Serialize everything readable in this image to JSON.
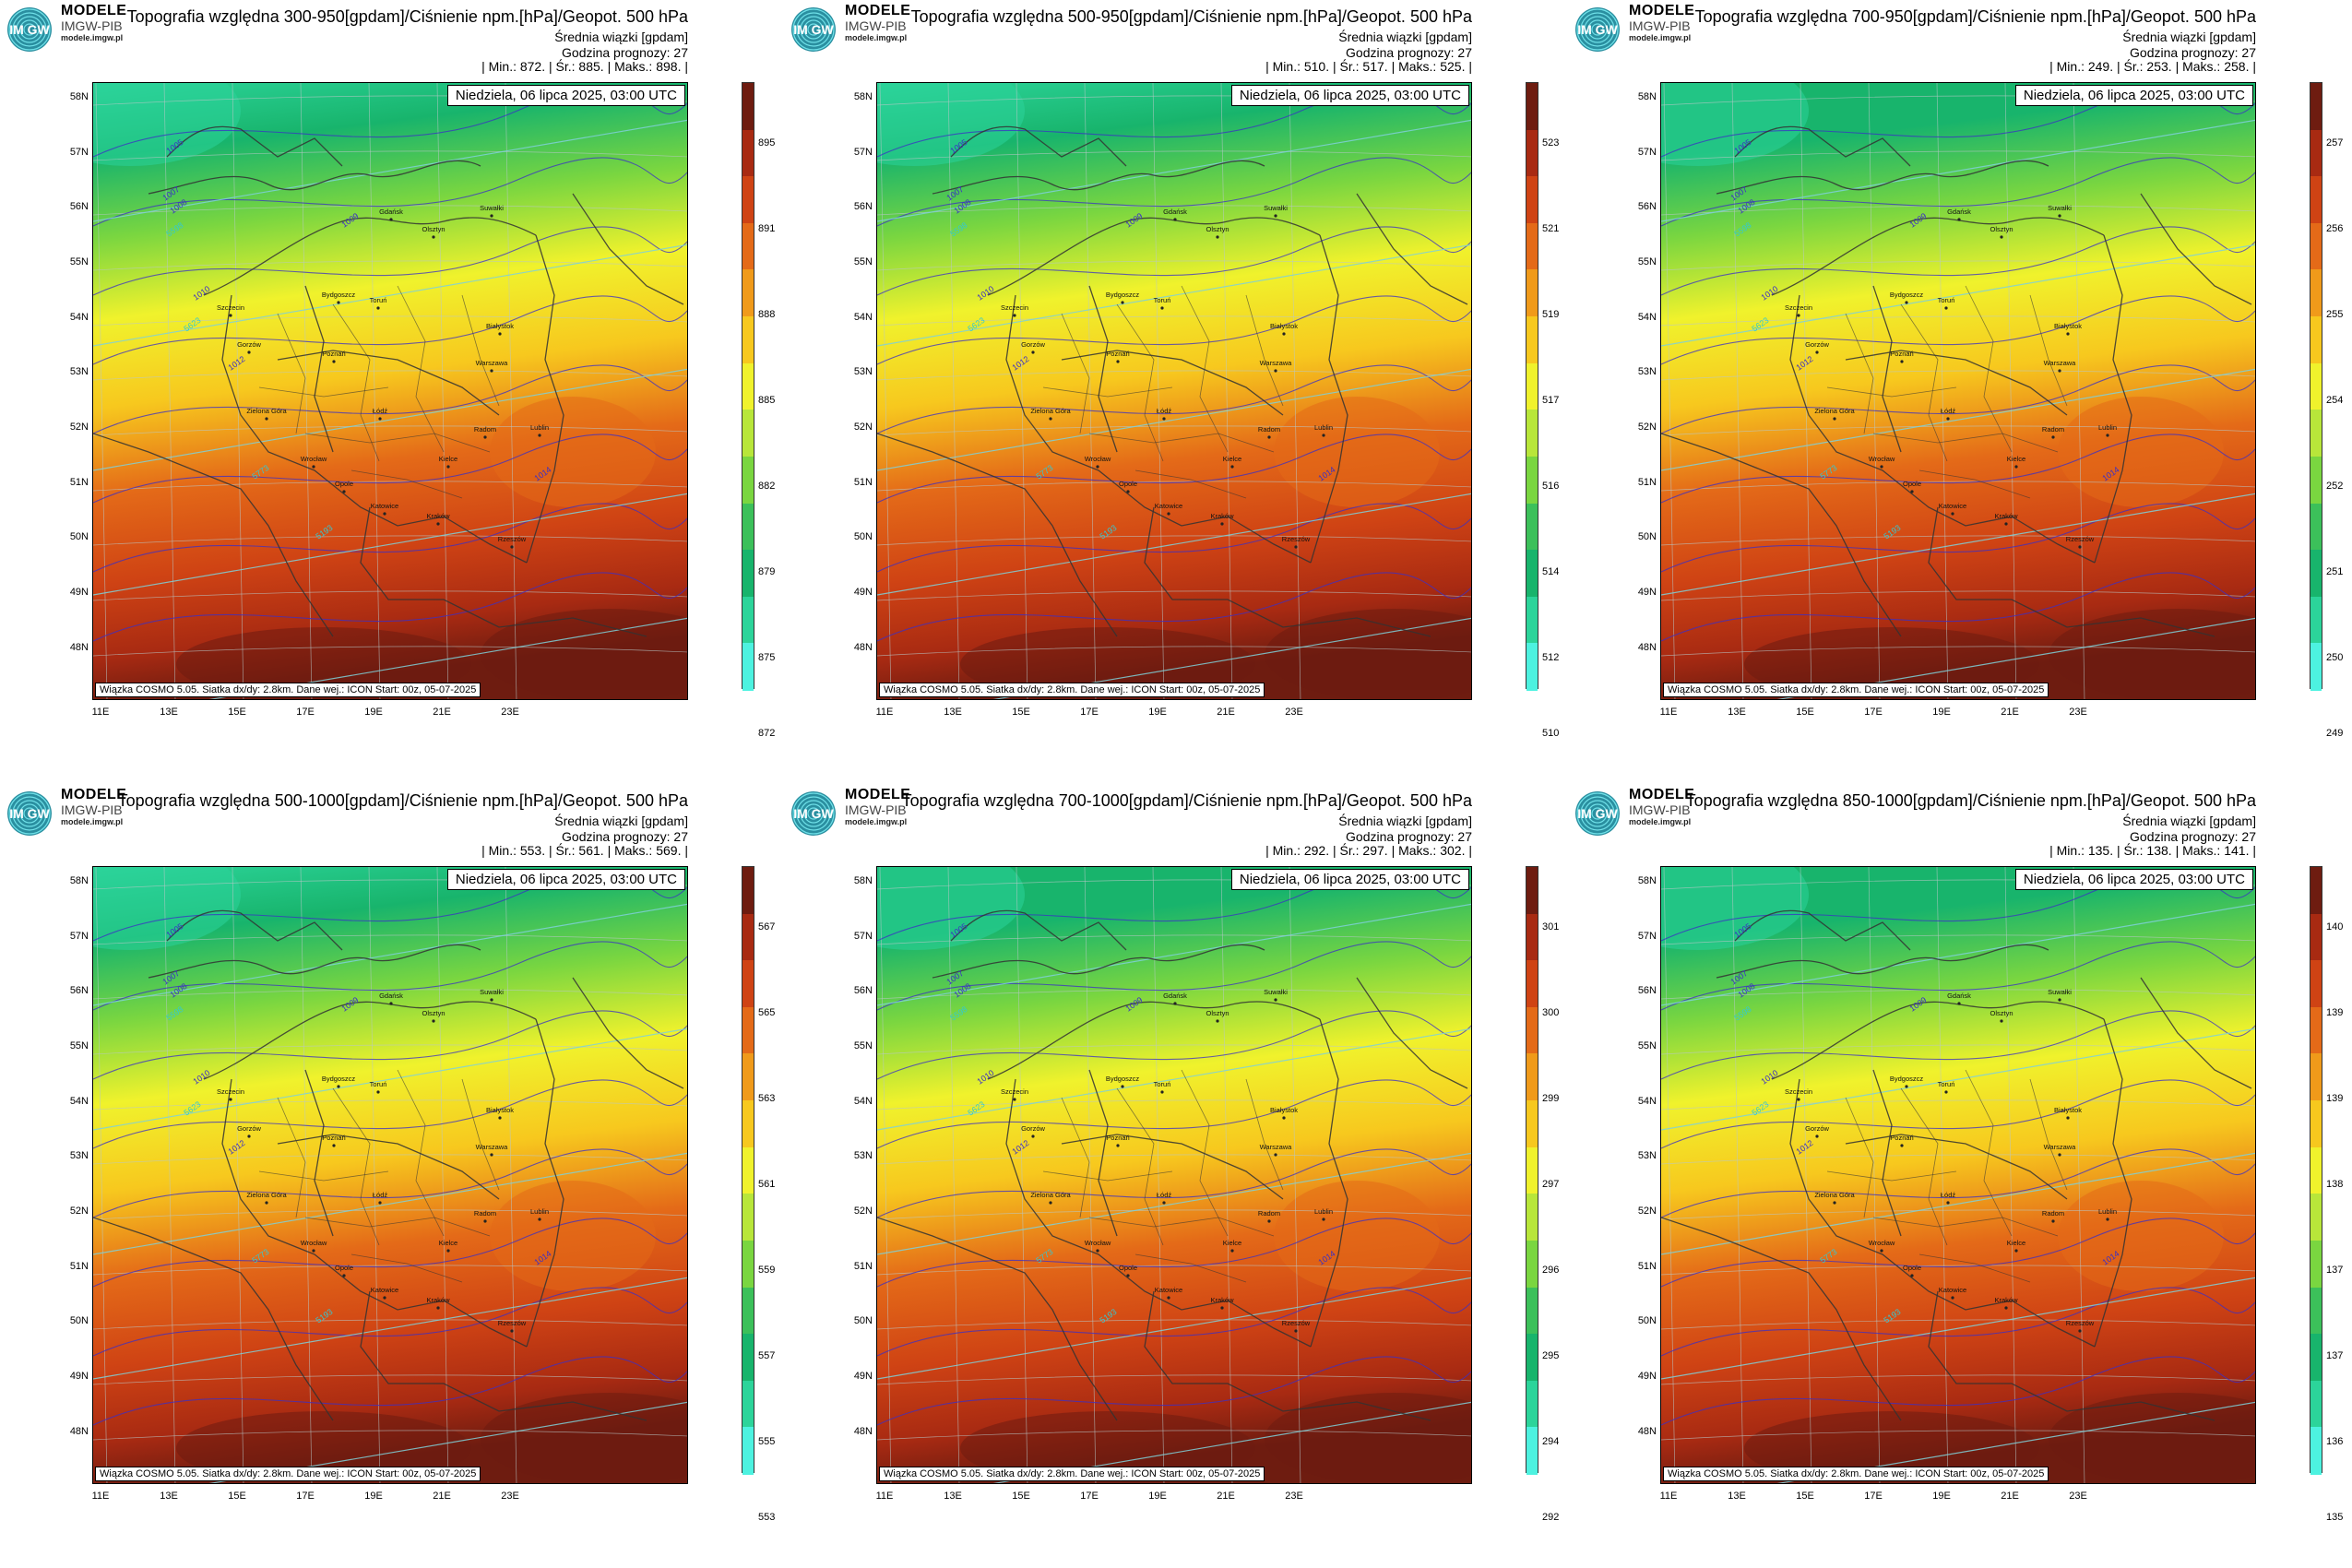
{
  "brand": {
    "logo": "IM GW",
    "name": "MODELE",
    "sub": "IMGW-PIB",
    "url": "modele.imgw.pl"
  },
  "subtitle1": "Średnia wiązki [gpdam]",
  "subtitle2": "Godzina prognozy: 27",
  "stat_labels": {
    "min": "Min.:",
    "mean": "Śr.:",
    "max": "Maks.:"
  },
  "date": "Niedziela, 06 lipca 2025, 03:00 UTC",
  "footer": "Wiązka COSMO 5.05. Siatka dx/dy: 2.8km. Dane wej.: ICON Start: 00z, 05-07-2025",
  "lat_labels": [
    "58N",
    "57N",
    "56N",
    "55N",
    "54N",
    "53N",
    "52N",
    "51N",
    "50N",
    "49N",
    "48N"
  ],
  "lon_labels": [
    "11E",
    "13E",
    "15E",
    "17E",
    "19E",
    "21E",
    "23E"
  ],
  "cities": [
    "Gdańsk",
    "Olsztyn",
    "Suwałki",
    "Szczecin",
    "Bydgoszcz",
    "Toruń",
    "Białystok",
    "Gorzów",
    "Poznań",
    "Warszawa",
    "Zielona Góra",
    "Łódź",
    "Lublin",
    "Wrocław",
    "Kielce",
    "Opole",
    "Radom",
    "Katowice",
    "Kraków",
    "Rzeszów"
  ],
  "isobar_labels": [
    "1005",
    "1007",
    "1008",
    "1009",
    "1010",
    "1012",
    "1014",
    "5598",
    "5623",
    "5773",
    "5193"
  ],
  "palette": {
    "scale": [
      "#4df2e0",
      "#2cd49a",
      "#18b46c",
      "#3cc05a",
      "#7ad640",
      "#b8e63a",
      "#f0f22c",
      "#f7c81e",
      "#f09a1a",
      "#e46a18",
      "#cf4314",
      "#a82a12",
      "#6e1c10"
    ],
    "border": "#333333",
    "isobar": "#3b2fc6",
    "geopot": "#7fd0d8"
  },
  "panels": [
    {
      "title": "Topografia względna 300-950[gpdam]/Ciśnienie npm.[hPa]/Geopot. 500 hPa",
      "min": "872.",
      "mean": "885.",
      "max": "898.",
      "colorbar": [
        "895",
        "891",
        "888",
        "885",
        "882",
        "879",
        "875",
        "872"
      ],
      "field": {
        "lowband": 0.0,
        "gradient": "meridional"
      }
    },
    {
      "title": "Topografia względna 500-950[gpdam]/Ciśnienie npm.[hPa]/Geopot. 500 hPa",
      "min": "510.",
      "mean": "517.",
      "max": "525.",
      "colorbar": [
        "523",
        "521",
        "519",
        "517",
        "516",
        "514",
        "512",
        "510"
      ],
      "field": {
        "lowband": 0.0,
        "gradient": "meridional"
      }
    },
    {
      "title": "Topografia względna 700-950[gpdam]/Ciśnienie npm.[hPa]/Geopot. 500 hPa",
      "min": "249.",
      "mean": "253.",
      "max": "258.",
      "colorbar": [
        "257",
        "256",
        "255",
        "254",
        "252",
        "251",
        "250",
        "249"
      ],
      "field": {
        "lowband": 0.08,
        "gradient": "meridional"
      }
    },
    {
      "title": "Topografia względna 500-1000[gpdam]/Ciśnienie npm.[hPa]/Geopot. 500 hPa",
      "min": "553.",
      "mean": "561.",
      "max": "569.",
      "colorbar": [
        "567",
        "565",
        "563",
        "561",
        "559",
        "557",
        "555",
        "553"
      ],
      "field": {
        "lowband": 0.0,
        "gradient": "meridional"
      }
    },
    {
      "title": "Topografia względna 700-1000[gpdam]/Ciśnienie npm.[hPa]/Geopot. 500 hPa",
      "min": "292.",
      "mean": "297.",
      "max": "302.",
      "colorbar": [
        "301",
        "300",
        "299",
        "297",
        "296",
        "295",
        "294",
        "292"
      ],
      "field": {
        "lowband": 0.05,
        "gradient": "meridional"
      }
    },
    {
      "title": "Topografia względna 850-1000[gpdam]/Ciśnienie npm.[hPa]/Geopot. 500 hPa",
      "min": "135.",
      "mean": "138.",
      "max": "141.",
      "colorbar": [
        "140",
        "139",
        "139",
        "138",
        "137",
        "137",
        "136",
        "135"
      ],
      "field": {
        "lowband": 0.1,
        "gradient": "meridional"
      }
    }
  ]
}
